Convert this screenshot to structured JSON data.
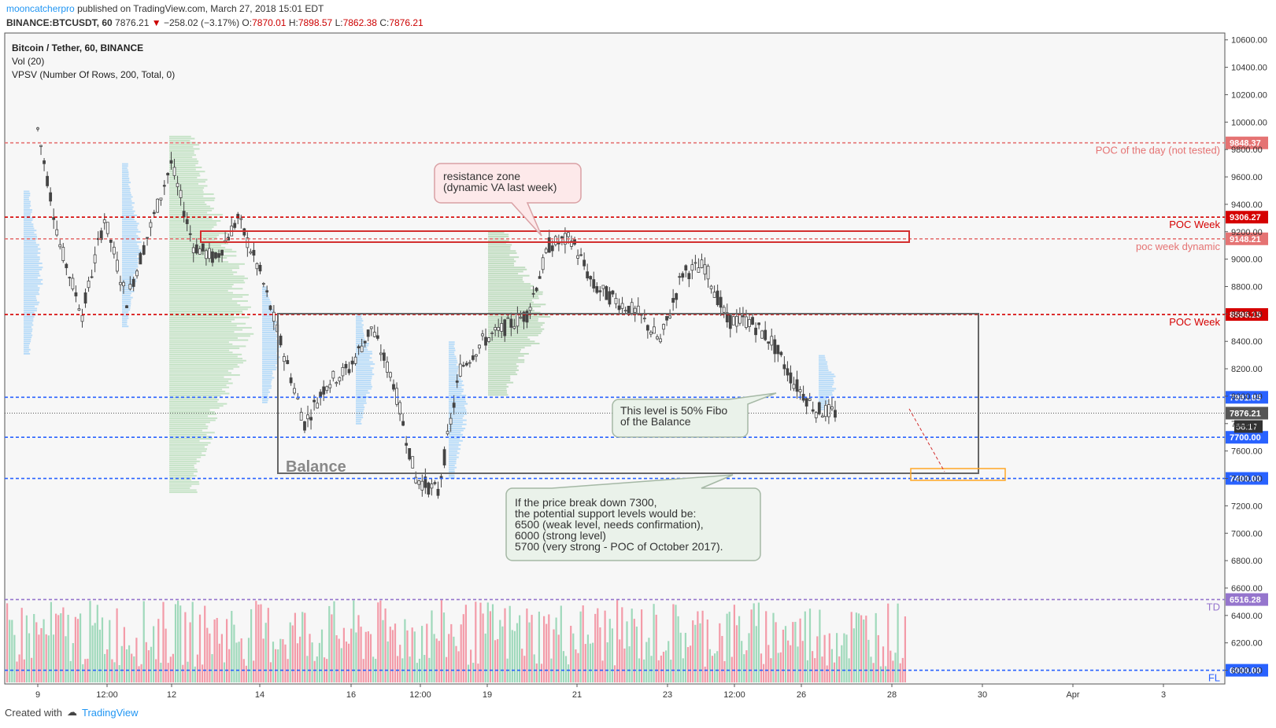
{
  "header": {
    "author": "mooncatcherpro",
    "published": "published on TradingView.com, March 27, 2018 15:01 EDT",
    "symbol_line": "BINANCE:BTCUSDT, 60",
    "last": "7876.21",
    "change": "−258.02 (−3.17%)",
    "open_label": "O:",
    "open": "7870.01",
    "high_label": "H:",
    "high": "7898.57",
    "low_label": "L:",
    "low": "7862.38",
    "close_label": "C:",
    "close": "7876.21"
  },
  "legend": {
    "title": "Bitcoin / Tether, 60, BINANCE",
    "vol": "Vol (20)",
    "vpsv": "VPSV (Number Of Rows, 200, Total, 0)"
  },
  "footer": {
    "created": "Created with",
    "brand": "TradingView"
  },
  "colors": {
    "up": "#4a4a4a",
    "down": "#4a4a4a",
    "vol_up": "#8fd3b0",
    "vol_down": "#f28b9a",
    "red_level": "#e53935",
    "blue_level": "#2962ff",
    "green_profile": "#a5d6a7",
    "blue_profile": "#90caf9"
  },
  "chart_data": {
    "type": "candlestick",
    "ylim": [
      5900,
      10650
    ],
    "y_ticks": [
      "10600.00",
      "10400.00",
      "10200.00",
      "10000.00",
      "9800.00",
      "9600.00",
      "9400.00",
      "9200.00",
      "9000.00",
      "8800.00",
      "8600.00",
      "8400.00",
      "8200.00",
      "8000.00",
      "7800.00",
      "7600.00",
      "7400.00",
      "7200.00",
      "7000.00",
      "6800.00",
      "6600.00",
      "6400.00",
      "6200.00",
      "6000.00"
    ],
    "x_ticks": [
      "9",
      "12:00",
      "12",
      "14",
      "16",
      "12:00",
      "19",
      "21",
      "23",
      "12:00",
      "26",
      "28",
      "30",
      "Apr",
      "3"
    ],
    "approx_path": [
      {
        "d": "9",
        "p": 9950
      },
      {
        "d": "9.5",
        "p": 9100
      },
      {
        "d": "10",
        "p": 8600
      },
      {
        "d": "10.5",
        "p": 9300
      },
      {
        "d": "11",
        "p": 8700
      },
      {
        "d": "12",
        "p": 9700
      },
      {
        "d": "12.5",
        "p": 9100
      },
      {
        "d": "13",
        "p": 9000
      },
      {
        "d": "13.5",
        "p": 9300
      },
      {
        "d": "14",
        "p": 8900
      },
      {
        "d": "15",
        "p": 7800
      },
      {
        "d": "15.5",
        "p": 8100
      },
      {
        "d": "16",
        "p": 8200
      },
      {
        "d": "16.5",
        "p": 8500
      },
      {
        "d": "17",
        "p": 8100
      },
      {
        "d": "17.5",
        "p": 7400
      },
      {
        "d": "18",
        "p": 7300
      },
      {
        "d": "18.5",
        "p": 8200
      },
      {
        "d": "19",
        "p": 8400
      },
      {
        "d": "19.5",
        "p": 8500
      },
      {
        "d": "20",
        "p": 8600
      },
      {
        "d": "20.5",
        "p": 9100
      },
      {
        "d": "21",
        "p": 9150
      },
      {
        "d": "21.5",
        "p": 8800
      },
      {
        "d": "22",
        "p": 8700
      },
      {
        "d": "22.5",
        "p": 8600
      },
      {
        "d": "23",
        "p": 8400
      },
      {
        "d": "23.5",
        "p": 8900
      },
      {
        "d": "24",
        "p": 8950
      },
      {
        "d": "24.5",
        "p": 8550
      },
      {
        "d": "25",
        "p": 8550
      },
      {
        "d": "25.5",
        "p": 8400
      },
      {
        "d": "26",
        "p": 8100
      },
      {
        "d": "26.5",
        "p": 7900
      },
      {
        "d": "27",
        "p": 7876
      }
    ],
    "levels": [
      {
        "price": 9848.37,
        "label": "9848.37",
        "note": "POC of the day (not tested)",
        "color": "#e57373",
        "style": "dashed"
      },
      {
        "price": 9306.27,
        "label": "9306.27",
        "note": "POC Week",
        "color": "#d50000",
        "style": "dashed"
      },
      {
        "price": 9148.21,
        "label": "9148.21",
        "note": "poc week dynamic",
        "color": "#e57373",
        "style": "dashed"
      },
      {
        "price": 8596.15,
        "label": "8596.15",
        "note": "POC Week",
        "color": "#d50000",
        "style": "dashed"
      },
      {
        "price": 7991.85,
        "label": "7991.85",
        "note": "",
        "color": "#2962ff",
        "style": "dashed"
      },
      {
        "price": 7876.21,
        "label": "7876.21",
        "note": "",
        "color": "#555555",
        "style": "dotted"
      },
      {
        "price": 7700.0,
        "label": "7700.00",
        "note": "",
        "color": "#2962ff",
        "style": "dashed"
      },
      {
        "price": 7400.0,
        "label": "7400.00",
        "note": "",
        "color": "#2962ff",
        "style": "dashed"
      },
      {
        "price": 6516.28,
        "label": "6516.28",
        "note": "TD",
        "color": "#9575cd",
        "style": "dashed"
      },
      {
        "price": 6000.0,
        "label": "6000.00",
        "note": "FL",
        "color": "#2962ff",
        "style": "dashed"
      }
    ],
    "countdown": "58:17",
    "balance_box": {
      "label": "Balance",
      "x_from": "14.5",
      "x_to": "28.5",
      "p_top": 8590,
      "p_bottom": 7400
    },
    "annotations": [
      {
        "text": [
          "resistance zone",
          "(dynamic VA last week)"
        ]
      },
      {
        "text": [
          "This level is 50% Fibo",
          "of the Balance"
        ]
      },
      {
        "text": [
          "If the price break down 7300,",
          "the potential support levels would be:",
          "6500 (weak level, needs confirmation),",
          "6000 (strong level)",
          "5700 (very strong - POC of October 2017)."
        ]
      }
    ]
  }
}
